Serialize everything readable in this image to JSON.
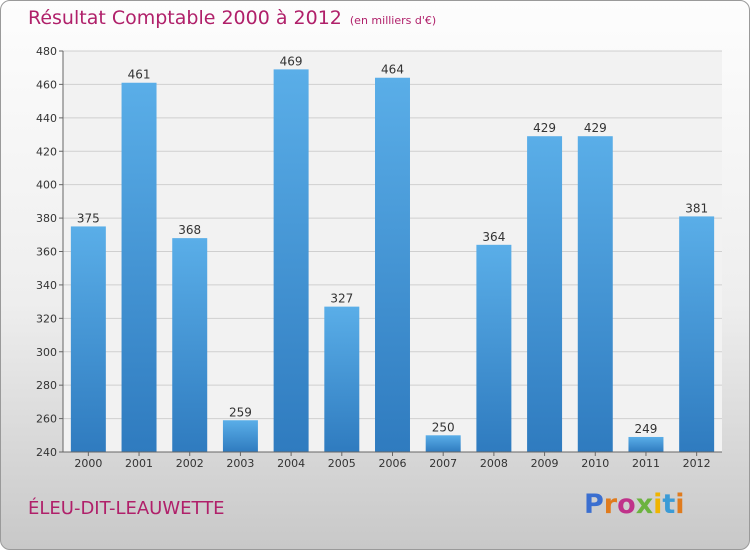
{
  "chart_data": {
    "type": "bar",
    "title": "Résultat Comptable 2000 à 2012",
    "subtitle": "(en milliers d'€)",
    "categories": [
      "2000",
      "2001",
      "2002",
      "2003",
      "2004",
      "2005",
      "2006",
      "2007",
      "2008",
      "2009",
      "2010",
      "2011",
      "2012"
    ],
    "values": [
      375,
      461,
      368,
      259,
      469,
      327,
      464,
      250,
      364,
      429,
      429,
      249,
      381
    ],
    "ylim": [
      240,
      480
    ],
    "yticks": [
      240,
      260,
      280,
      300,
      320,
      340,
      360,
      380,
      400,
      420,
      440,
      460,
      480
    ],
    "grid": true,
    "bar_color_top": "#5aaee8",
    "bar_color_bottom": "#2f7bbf"
  },
  "commune": "ÉLEU-DIT-LEAUWETTE",
  "logo": {
    "text": "Proxiti",
    "letters": [
      "P",
      "r",
      "o",
      "x",
      "i",
      "t",
      "i"
    ]
  }
}
